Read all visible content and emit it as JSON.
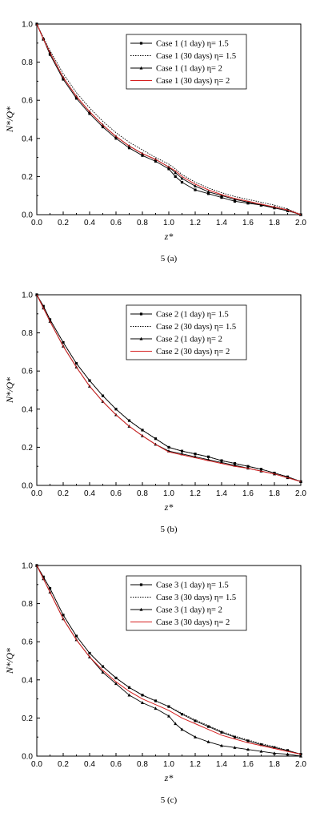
{
  "chart_data": [
    {
      "type": "line",
      "caption": "5 (a)",
      "xlabel": "z*",
      "ylabel": "N*/Q*",
      "xlim": [
        0.0,
        2.0
      ],
      "ylim": [
        0.0,
        1.0
      ],
      "xticks": [
        "0.0",
        "0.2",
        "0.4",
        "0.6",
        "0.8",
        "1.0",
        "1.2",
        "1.4",
        "1.6",
        "1.8",
        "2.0"
      ],
      "yticks": [
        "0.0",
        "0.2",
        "0.4",
        "0.6",
        "0.8",
        "1.0"
      ],
      "legend_position": "top-right",
      "series": [
        {
          "name": "Case 1 (1 day) η= 1.5",
          "style": "square-markers",
          "color": "#000000",
          "x": [
            0.0,
            0.05,
            0.1,
            0.2,
            0.3,
            0.4,
            0.5,
            0.6,
            0.7,
            0.8,
            0.9,
            1.0,
            1.05,
            1.1,
            1.2,
            1.3,
            1.4,
            1.5,
            1.6,
            1.7,
            1.8,
            1.9,
            2.0
          ],
          "y": [
            1.0,
            0.92,
            0.84,
            0.71,
            0.61,
            0.53,
            0.46,
            0.4,
            0.35,
            0.31,
            0.28,
            0.24,
            0.2,
            0.17,
            0.13,
            0.11,
            0.09,
            0.07,
            0.06,
            0.05,
            0.035,
            0.02,
            0.0
          ]
        },
        {
          "name": "Case 1 (30 days) η= 1.5",
          "style": "dotted",
          "color": "#000000",
          "x": [
            0.0,
            0.05,
            0.1,
            0.2,
            0.3,
            0.4,
            0.5,
            0.6,
            0.7,
            0.8,
            0.9,
            1.0,
            1.05,
            1.1,
            1.2,
            1.3,
            1.4,
            1.5,
            1.6,
            1.7,
            1.8,
            1.9,
            2.0
          ],
          "y": [
            1.0,
            0.93,
            0.86,
            0.74,
            0.64,
            0.56,
            0.49,
            0.43,
            0.38,
            0.34,
            0.3,
            0.265,
            0.24,
            0.21,
            0.17,
            0.14,
            0.115,
            0.095,
            0.08,
            0.065,
            0.05,
            0.03,
            0.0
          ]
        },
        {
          "name": "Case 1 (1 day) η= 2",
          "style": "triangle-markers",
          "color": "#000000",
          "x": [
            0.0,
            0.05,
            0.1,
            0.2,
            0.3,
            0.4,
            0.5,
            0.6,
            0.7,
            0.8,
            0.9,
            1.0,
            1.05,
            1.1,
            1.2,
            1.3,
            1.4,
            1.5,
            1.6,
            1.7,
            1.8,
            1.9,
            2.0
          ],
          "y": [
            1.0,
            0.92,
            0.85,
            0.72,
            0.62,
            0.54,
            0.47,
            0.41,
            0.36,
            0.32,
            0.29,
            0.25,
            0.22,
            0.19,
            0.15,
            0.12,
            0.1,
            0.08,
            0.065,
            0.05,
            0.04,
            0.025,
            0.0
          ]
        },
        {
          "name": "Case 1 (30 days) η= 2",
          "style": "solid",
          "color": "#d62020",
          "x": [
            0.0,
            0.05,
            0.1,
            0.2,
            0.3,
            0.4,
            0.5,
            0.6,
            0.7,
            0.8,
            0.9,
            1.0,
            1.05,
            1.1,
            1.2,
            1.3,
            1.4,
            1.5,
            1.6,
            1.7,
            1.8,
            1.9,
            2.0
          ],
          "y": [
            1.0,
            0.92,
            0.85,
            0.72,
            0.62,
            0.54,
            0.47,
            0.41,
            0.36,
            0.32,
            0.29,
            0.25,
            0.23,
            0.2,
            0.16,
            0.13,
            0.105,
            0.085,
            0.07,
            0.055,
            0.04,
            0.025,
            0.0
          ]
        }
      ]
    },
    {
      "type": "line",
      "caption": "5 (b)",
      "xlabel": "z*",
      "ylabel": "N*/Q*",
      "xlim": [
        0.0,
        2.0
      ],
      "ylim": [
        0.0,
        1.0
      ],
      "xticks": [
        "0.0",
        "0.2",
        "0.4",
        "0.6",
        "0.8",
        "1.0",
        "1.2",
        "1.4",
        "1.6",
        "1.8",
        "2.0"
      ],
      "yticks": [
        "0.0",
        "0.2",
        "0.4",
        "0.6",
        "0.8",
        "1.0"
      ],
      "legend_position": "top-right",
      "series": [
        {
          "name": "Case 2 (1 day) η= 1.5",
          "style": "square-markers",
          "color": "#000000",
          "x": [
            0.0,
            0.05,
            0.1,
            0.2,
            0.3,
            0.4,
            0.5,
            0.6,
            0.7,
            0.8,
            0.9,
            1.0,
            1.1,
            1.2,
            1.3,
            1.4,
            1.5,
            1.6,
            1.7,
            1.8,
            1.9,
            2.0
          ],
          "y": [
            1.0,
            0.94,
            0.87,
            0.75,
            0.64,
            0.55,
            0.47,
            0.4,
            0.34,
            0.29,
            0.245,
            0.2,
            0.18,
            0.165,
            0.15,
            0.13,
            0.115,
            0.1,
            0.085,
            0.065,
            0.045,
            0.02
          ]
        },
        {
          "name": "Case 2 (30 days) η= 1.5",
          "style": "dotted",
          "color": "#000000",
          "x": [
            0.0,
            0.05,
            0.1,
            0.2,
            0.3,
            0.4,
            0.5,
            0.6,
            0.7,
            0.8,
            0.9,
            1.0,
            1.1,
            1.2,
            1.3,
            1.4,
            1.5,
            1.6,
            1.7,
            1.8,
            1.9,
            2.0
          ],
          "y": [
            1.0,
            0.94,
            0.87,
            0.75,
            0.64,
            0.55,
            0.47,
            0.4,
            0.34,
            0.29,
            0.245,
            0.2,
            0.18,
            0.165,
            0.15,
            0.13,
            0.115,
            0.1,
            0.085,
            0.065,
            0.045,
            0.02
          ]
        },
        {
          "name": "Case 2 (1 day) η= 2",
          "style": "triangle-markers",
          "color": "#000000",
          "x": [
            0.0,
            0.05,
            0.1,
            0.2,
            0.3,
            0.4,
            0.5,
            0.6,
            0.7,
            0.8,
            0.9,
            1.0,
            1.1,
            1.2,
            1.3,
            1.4,
            1.5,
            1.6,
            1.7,
            1.8,
            1.9,
            2.0
          ],
          "y": [
            1.0,
            0.93,
            0.86,
            0.73,
            0.62,
            0.52,
            0.44,
            0.37,
            0.31,
            0.26,
            0.215,
            0.18,
            0.165,
            0.15,
            0.135,
            0.12,
            0.105,
            0.09,
            0.075,
            0.06,
            0.04,
            0.02
          ]
        },
        {
          "name": "Case 2 (30 days) η= 2",
          "style": "solid",
          "color": "#d62020",
          "x": [
            0.0,
            0.05,
            0.1,
            0.2,
            0.3,
            0.4,
            0.5,
            0.6,
            0.7,
            0.8,
            0.9,
            1.0,
            1.1,
            1.2,
            1.3,
            1.4,
            1.5,
            1.6,
            1.7,
            1.8,
            1.9,
            2.0
          ],
          "y": [
            1.0,
            0.93,
            0.86,
            0.73,
            0.62,
            0.52,
            0.44,
            0.37,
            0.31,
            0.26,
            0.215,
            0.175,
            0.16,
            0.145,
            0.13,
            0.115,
            0.1,
            0.09,
            0.075,
            0.06,
            0.04,
            0.02
          ]
        }
      ]
    },
    {
      "type": "line",
      "caption": "5 (c)",
      "xlabel": "z*",
      "ylabel": "N*/Q*",
      "xlim": [
        0.0,
        2.0
      ],
      "ylim": [
        0.0,
        1.0
      ],
      "xticks": [
        "0.0",
        "0.2",
        "0.4",
        "0.6",
        "0.8",
        "1.0",
        "1.2",
        "1.4",
        "1.6",
        "1.8",
        "2.0"
      ],
      "yticks": [
        "0.0",
        "0.2",
        "0.4",
        "0.6",
        "0.8",
        "1.0"
      ],
      "legend_position": "top-right",
      "series": [
        {
          "name": "Case 3 (1 day) η= 1.5",
          "style": "square-markers",
          "color": "#000000",
          "x": [
            0.0,
            0.05,
            0.1,
            0.2,
            0.3,
            0.4,
            0.5,
            0.6,
            0.7,
            0.8,
            0.9,
            1.0,
            1.1,
            1.2,
            1.3,
            1.4,
            1.5,
            1.6,
            1.7,
            1.8,
            1.9,
            2.0
          ],
          "y": [
            1.0,
            0.94,
            0.88,
            0.74,
            0.63,
            0.54,
            0.47,
            0.41,
            0.36,
            0.32,
            0.29,
            0.26,
            0.22,
            0.185,
            0.155,
            0.125,
            0.1,
            0.08,
            0.06,
            0.045,
            0.03,
            0.01
          ]
        },
        {
          "name": "Case 3 (30 days) η= 1.5",
          "style": "dotted",
          "color": "#000000",
          "x": [
            0.0,
            0.05,
            0.1,
            0.2,
            0.3,
            0.4,
            0.5,
            0.6,
            0.7,
            0.8,
            0.9,
            1.0,
            1.1,
            1.2,
            1.3,
            1.4,
            1.5,
            1.6,
            1.7,
            1.8,
            1.9,
            2.0
          ],
          "y": [
            1.0,
            0.94,
            0.88,
            0.74,
            0.63,
            0.54,
            0.47,
            0.41,
            0.36,
            0.32,
            0.29,
            0.26,
            0.225,
            0.19,
            0.16,
            0.13,
            0.105,
            0.085,
            0.065,
            0.05,
            0.03,
            0.01
          ]
        },
        {
          "name": "Case 3 (1 day) η= 2",
          "style": "triangle-markers",
          "color": "#000000",
          "x": [
            0.0,
            0.05,
            0.1,
            0.2,
            0.3,
            0.4,
            0.5,
            0.6,
            0.7,
            0.8,
            0.9,
            1.0,
            1.05,
            1.1,
            1.2,
            1.3,
            1.4,
            1.5,
            1.6,
            1.7,
            1.8,
            1.9,
            2.0
          ],
          "y": [
            1.0,
            0.93,
            0.86,
            0.72,
            0.61,
            0.52,
            0.44,
            0.38,
            0.32,
            0.28,
            0.25,
            0.21,
            0.17,
            0.14,
            0.1,
            0.075,
            0.055,
            0.045,
            0.035,
            0.025,
            0.015,
            0.01,
            0.0
          ]
        },
        {
          "name": "Case 3 (30 days) η= 2",
          "style": "solid",
          "color": "#d62020",
          "x": [
            0.0,
            0.05,
            0.1,
            0.2,
            0.3,
            0.4,
            0.5,
            0.6,
            0.7,
            0.8,
            0.9,
            1.0,
            1.1,
            1.2,
            1.3,
            1.4,
            1.5,
            1.6,
            1.7,
            1.8,
            1.9,
            2.0
          ],
          "y": [
            1.0,
            0.93,
            0.86,
            0.72,
            0.61,
            0.52,
            0.45,
            0.39,
            0.34,
            0.3,
            0.27,
            0.24,
            0.2,
            0.17,
            0.14,
            0.11,
            0.09,
            0.07,
            0.055,
            0.04,
            0.025,
            0.01
          ]
        }
      ]
    }
  ]
}
